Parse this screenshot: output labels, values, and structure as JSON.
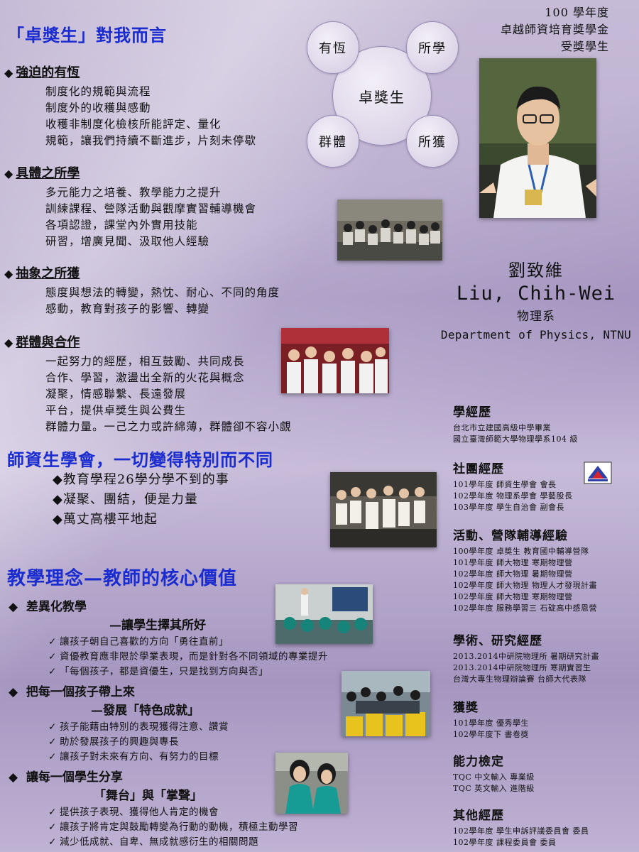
{
  "header": {
    "title": "「卓獎生」對我而言",
    "year": "100 學年度",
    "scholarship": "卓越師資培育獎學金",
    "recipient": "受獎學生"
  },
  "diagram": {
    "center": "卓獎生",
    "nodes": [
      "有恆",
      "所學",
      "群體",
      "所獲"
    ]
  },
  "sections": [
    {
      "heading": "強迫的有恆",
      "lines": [
        "制度化的規範與流程",
        "制度外的收穫與感動",
        "收穫非制度化檢核所能評定、量化",
        "規範，讓我們持續不斷進步，片刻未停歇"
      ]
    },
    {
      "heading": "具體之所學",
      "lines": [
        "多元能力之培養、教學能力之提升",
        "訓練課程、營隊活動與觀摩實習輔導機會",
        "各項認證，課堂內外實用技能",
        "研習，增廣見聞、汲取他人經驗"
      ]
    },
    {
      "heading": "抽象之所獲",
      "lines": [
        "態度與想法的轉變，熱忱、耐心、不同的角度",
        "感動，教育對孩子的影響、轉變"
      ]
    },
    {
      "heading": "群體與合作",
      "lines": [
        "一起努力的經歷，相互鼓勵、共同成長",
        "合作、學習，激盪出全新的火花與概念",
        "凝聚，情感聯繫、長遠發展",
        "平台，提供卓獎生與公費生",
        "群體力量。一己之力或許綿薄，群體卻不容小覷"
      ]
    }
  ],
  "association": {
    "title": "師資生學會，一切變得特別而不同",
    "bullets": [
      "◆教育學程26學分學不到的事",
      "◆凝聚、團結，便是力量",
      "◆萬丈高樓平地起"
    ]
  },
  "philosophy": {
    "title": "教學理念—教師的核心價值",
    "items": [
      {
        "heading": "差異化教學",
        "sub": "—讓學生擇其所好",
        "checks": [
          "讓孩子朝自己喜歡的方向「勇往直前」",
          "資優教育應非限於學業表現，而是針對各不同領域的專業提升",
          "「每個孩子，都是資優生，只是找到方向與否」"
        ]
      },
      {
        "heading": "把每一個孩子帶上來",
        "sub": "—發展「特色成就」",
        "checks": [
          "孩子能藉由特別的表現獲得注意、讚賞",
          "助於發展孩子的興趣與專長",
          "讓孩子對未來有方向、有努力的目標"
        ]
      },
      {
        "heading": "讓每一個學生分享",
        "sub": "「舞台」與「掌聲」",
        "checks": [
          "提供孩子表現、獲得他人肯定的機會",
          "讓孩子將肯定與鼓勵轉變為行動的動機，積極主動學習",
          "減少低成就、自卑、無成就感衍生的相關問題"
        ]
      }
    ]
  },
  "profile": {
    "name_zh": "劉致維",
    "name_en": "Liu, Chih-Wei",
    "dept_zh": "物理系",
    "dept_en": "Department of Physics, NTNU"
  },
  "resume": [
    {
      "heading": "學經歷",
      "lines": [
        "台北市立建國高級中學畢業",
        "國立臺灣師範大學物理學系104 級"
      ]
    },
    {
      "heading": "社團經歷",
      "lines": [
        "101學年度 師資生學會 會長",
        "102學年度 物理系學會 學藝股長",
        "103學年度 學生自治會 副會長"
      ]
    },
    {
      "heading": "活動、營隊輔導經驗",
      "lines": [
        "100學年度 卓獎生 教育國中輔導營隊",
        "101學年度 師大物理 寒期物理營",
        "102學年度 師大物理 暑期物理營",
        "102學年度 師大物理 物理人才發現計畫",
        "102學年度 師大物理 寒期物理營",
        "102學年度 服務學習三 石碇高中感恩營"
      ]
    },
    {
      "heading": "學術、研究經歷",
      "lines": [
        "2013.2014中研院物理所 暑期研究計畫",
        "2013.2014中研院物理所 寒期實習生",
        "台灣大專生物理辯論賽 台師大代表隊"
      ]
    },
    {
      "heading": "獲獎",
      "lines": [
        "101學年度 優秀學生",
        "102學年度下 書卷獎"
      ]
    },
    {
      "heading": "能力檢定",
      "lines": [
        "TQC 中文輸入 專業級",
        "TQC 英文輸入 進階級"
      ]
    },
    {
      "heading": "其他經歷",
      "lines": [
        "102學年度 學生申訴評議委員會 委員",
        "102學年度 課程委員會 委員"
      ]
    }
  ],
  "colors": {
    "accent": "#1a2bd0",
    "background": "#a99bc4"
  }
}
